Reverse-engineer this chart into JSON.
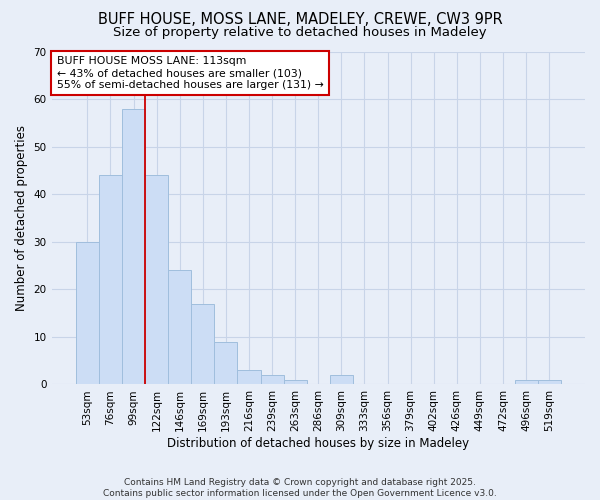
{
  "title1": "BUFF HOUSE, MOSS LANE, MADELEY, CREWE, CW3 9PR",
  "title2": "Size of property relative to detached houses in Madeley",
  "xlabel": "Distribution of detached houses by size in Madeley",
  "ylabel": "Number of detached properties",
  "categories": [
    "53sqm",
    "76sqm",
    "99sqm",
    "122sqm",
    "146sqm",
    "169sqm",
    "193sqm",
    "216sqm",
    "239sqm",
    "263sqm",
    "286sqm",
    "309sqm",
    "333sqm",
    "356sqm",
    "379sqm",
    "402sqm",
    "426sqm",
    "449sqm",
    "472sqm",
    "496sqm",
    "519sqm"
  ],
  "values": [
    30,
    44,
    58,
    44,
    24,
    17,
    9,
    3,
    2,
    1,
    0,
    2,
    0,
    0,
    0,
    0,
    0,
    0,
    0,
    1,
    1
  ],
  "bar_color": "#ccddf5",
  "bar_edge_color": "#a0bedd",
  "grid_color": "#c8d4e8",
  "background_color": "#e8eef8",
  "red_line_x": 2.5,
  "annotation_line1": "BUFF HOUSE MOSS LANE: 113sqm",
  "annotation_line2": "← 43% of detached houses are smaller (103)",
  "annotation_line3": "55% of semi-detached houses are larger (131) →",
  "annotation_box_color": "white",
  "annotation_border_color": "#cc0000",
  "ylim": [
    0,
    70
  ],
  "yticks": [
    0,
    10,
    20,
    30,
    40,
    50,
    60,
    70
  ],
  "footer": "Contains HM Land Registry data © Crown copyright and database right 2025.\nContains public sector information licensed under the Open Government Licence v3.0.",
  "title_fontsize": 10.5,
  "subtitle_fontsize": 9.5,
  "tick_fontsize": 7.5,
  "label_fontsize": 8.5,
  "bar_width": 1.0
}
